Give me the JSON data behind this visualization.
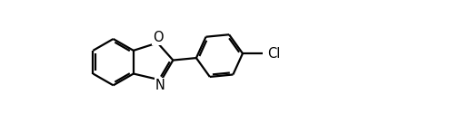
{
  "bg_color": "#ffffff",
  "line_color": "#000000",
  "line_width": 1.6,
  "dbo": 0.022,
  "trim": 0.13,
  "figsize": [
    5.05,
    1.36
  ],
  "dpi": 100,
  "xlim": [
    0,
    3.713
  ],
  "ylim": [
    0,
    1.0
  ]
}
